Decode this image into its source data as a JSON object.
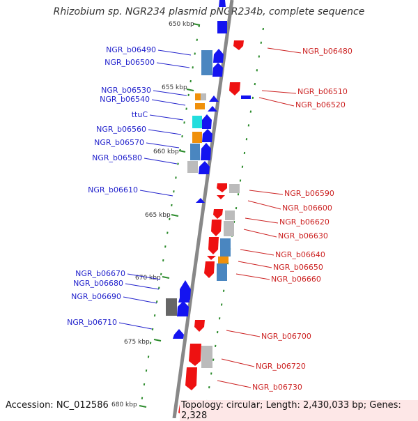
{
  "title": "Rhizobium sp. NGR234 plasmid pNGR234b, complete sequence",
  "accession": "Accession: NC_012586",
  "topology": "Topology: circular; Length: 2,430,033 bp; Genes: 2,328",
  "kbp_ticks": [
    "650 kbp",
    "655 kbp",
    "660 kbp",
    "665 kbp",
    "670 kbp",
    "675 kbp",
    "680 kbp"
  ],
  "left_labels": [
    "NGR_b06490",
    "NGR_b06500",
    "NGR_b06530",
    "NGR_b06540",
    "ttuC",
    "NGR_b06560",
    "NGR_b06570",
    "NGR_b06580",
    "NGR_b06610",
    "NGR_b06670",
    "NGR_b06680",
    "NGR_b06690",
    "NGR_b06710"
  ],
  "right_labels": [
    "NGR_b06480",
    "NGR_b06510",
    "NGR_b06520",
    "NGR_b06590",
    "NGR_b06600",
    "NGR_b06620",
    "NGR_b06630",
    "NGR_b06640",
    "NGR_b06650",
    "NGR_b06660",
    "NGR_b06700",
    "NGR_b06720",
    "NGR_b06730"
  ],
  "colors": {
    "forward_gene": "#1414f0",
    "reverse_gene": "#ee1111",
    "backbone": "#888888",
    "left_label": "#2222cc",
    "right_label": "#cc2222",
    "cog_blue": "#4a86c0",
    "cog_orange": "#f0900a",
    "cog_gray": "#bbbbbb",
    "cog_cyan": "#22dddd",
    "dots": "#2a8a2a"
  }
}
